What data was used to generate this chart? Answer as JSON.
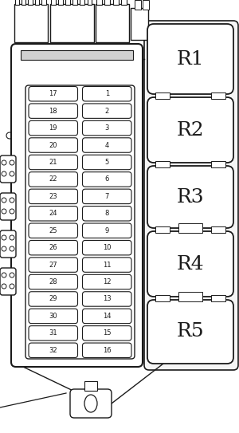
{
  "bg_color": "#ffffff",
  "line_color": "#1a1a1a",
  "fuse_labels_left": [
    "17",
    "18",
    "19",
    "20",
    "21",
    "22",
    "23",
    "24",
    "25",
    "26",
    "27",
    "28",
    "29",
    "30",
    "31",
    "32"
  ],
  "fuse_labels_right": [
    "1",
    "2",
    "3",
    "4",
    "5",
    "6",
    "7",
    "8",
    "9",
    "10",
    "11",
    "12",
    "13",
    "14",
    "15",
    "16"
  ],
  "relay_labels": [
    "R1",
    "R2",
    "R3",
    "R4",
    "R5"
  ],
  "figsize": [
    3.0,
    5.43
  ],
  "dpi": 100
}
